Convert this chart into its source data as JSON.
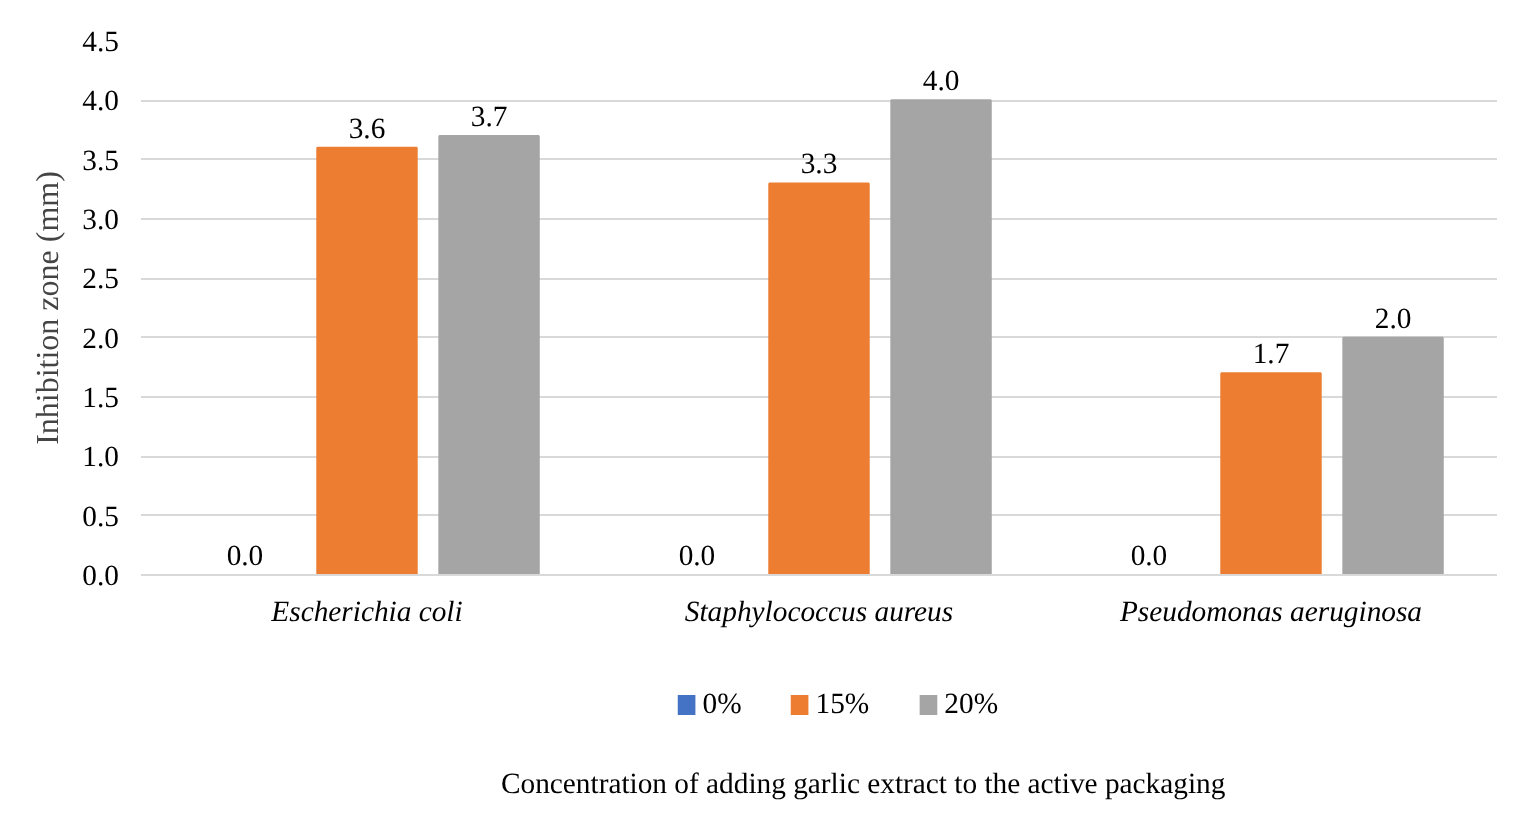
{
  "chart_data": {
    "type": "bar",
    "categories": [
      "Escherichia coli",
      "Staphylococcus aureus",
      "Pseudomonas aeruginosa"
    ],
    "series": [
      {
        "name": "0%",
        "color": "#4472c4",
        "values": [
          0.0,
          0.0,
          0.0
        ],
        "value_labels": [
          "0.0",
          "0.0",
          "0.0"
        ]
      },
      {
        "name": "15%",
        "color": "#ed7d31",
        "values": [
          3.6,
          3.3,
          1.7
        ],
        "value_labels": [
          "3.6",
          "3.3",
          "1.7"
        ]
      },
      {
        "name": "20%",
        "color": "#a5a5a5",
        "values": [
          3.7,
          4.0,
          2.0
        ],
        "value_labels": [
          "3.7",
          "4.0",
          "2.0"
        ]
      }
    ],
    "ylabel": "Inhibition zone (mm)",
    "xlabel": "Concentration of adding garlic extract to the active packaging",
    "ylim": [
      0,
      4.5
    ],
    "yticks": [
      {
        "value": 0,
        "label": "0.0"
      },
      {
        "value": 0.5,
        "label": "0.5"
      },
      {
        "value": 1,
        "label": "1.0"
      },
      {
        "value": 1.5,
        "label": "1.5"
      },
      {
        "value": 2,
        "label": "2.0"
      },
      {
        "value": 2.5,
        "label": "2.5"
      },
      {
        "value": 3,
        "label": "3.0"
      },
      {
        "value": 3.5,
        "label": "3.5"
      },
      {
        "value": 4,
        "label": "4.0"
      },
      {
        "value": 4.5,
        "label": "4.5"
      }
    ],
    "grid": "y",
    "legend": "bottom"
  }
}
